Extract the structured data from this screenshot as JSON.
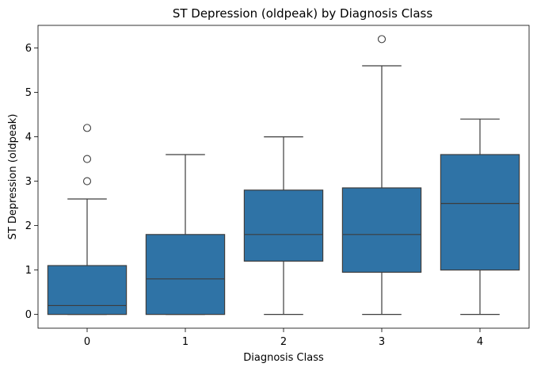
{
  "chart_data": {
    "type": "box",
    "title": "ST Depression (oldpeak) by Diagnosis Class",
    "xlabel": "Diagnosis Class",
    "ylabel": "ST Depression (oldpeak)",
    "categories": [
      "0",
      "1",
      "2",
      "3",
      "4"
    ],
    "yticks": [
      0,
      1,
      2,
      3,
      4,
      5,
      6
    ],
    "ylim": [
      -0.31,
      6.51
    ],
    "grid": false,
    "legend": "none",
    "box_color": "#2f73a6",
    "line_color": "#3d3d3d",
    "boxes": [
      {
        "category": "0",
        "whisker_low": 0,
        "q1": 0,
        "median": 0.2,
        "q3": 1.1,
        "whisker_high": 2.6,
        "outliers": [
          3.0,
          3.5,
          4.2
        ]
      },
      {
        "category": "1",
        "whisker_low": 0,
        "q1": 0,
        "median": 0.8,
        "q3": 1.8,
        "whisker_high": 3.6,
        "outliers": []
      },
      {
        "category": "2",
        "whisker_low": 0,
        "q1": 1.2,
        "median": 1.8,
        "q3": 2.8,
        "whisker_high": 4.0,
        "outliers": []
      },
      {
        "category": "3",
        "whisker_low": 0,
        "q1": 0.95,
        "median": 1.8,
        "q3": 2.85,
        "whisker_high": 5.6,
        "outliers": [
          6.2
        ]
      },
      {
        "category": "4",
        "whisker_low": 0,
        "q1": 1.0,
        "median": 2.5,
        "q3": 3.6,
        "whisker_high": 4.4,
        "outliers": []
      }
    ]
  }
}
